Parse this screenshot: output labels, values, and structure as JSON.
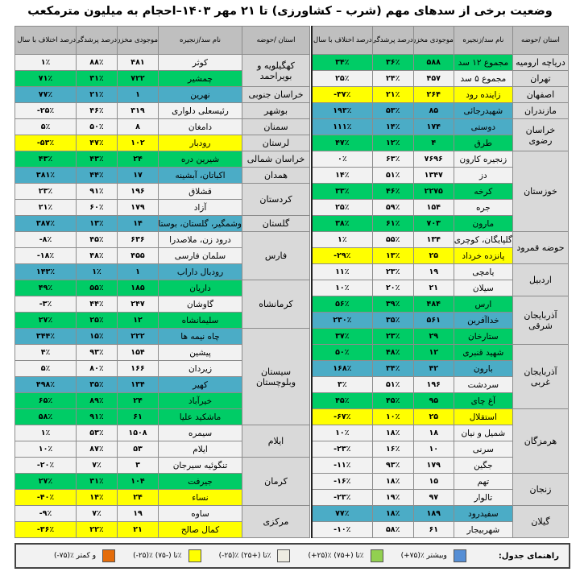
{
  "title": "وضعیت برخی از سدهای مهم (شرب – کشاورزی) تا ۲۱ مهر ۱۴۰۳–احجام به میلیون مترمکعب",
  "headers": {
    "province": "استان /حوضه",
    "name": "نام سد/زنجیره",
    "storage": "موجودی مخزن",
    "fill": "درصد پرشدگی",
    "diff": "درصد اختلاف با سال قبل"
  },
  "colors": {
    "blue": "#4bacc6",
    "green": "#00cc66",
    "light": "#f2f2f2",
    "yellow": "#ffff00",
    "orange": "#e46c0a"
  },
  "right_table": [
    {
      "province": "دریاچه ارومیه",
      "rows": [
        {
          "name": "مجموع ۱۲ سد",
          "storage": "۵۸۸",
          "fill": "۳۶٪",
          "diff": "۳۴٪",
          "status": "green"
        }
      ]
    },
    {
      "province": "تهران",
      "rows": [
        {
          "name": "مجموع ۵ سد",
          "storage": "۴۵۷",
          "fill": "۲۴٪",
          "diff": "۲۵٪",
          "status": "light"
        }
      ]
    },
    {
      "province": "اصفهان",
      "rows": [
        {
          "name": "زاینده رود",
          "storage": "۲۶۴",
          "fill": "۲۱٪",
          "diff": "-۳۷٪",
          "status": "yellow"
        }
      ]
    },
    {
      "province": "مازندران",
      "rows": [
        {
          "name": "شهیدرجائی",
          "storage": "۸۵",
          "fill": "۵۳٪",
          "diff": "۱۹۳٪",
          "status": "blue"
        }
      ]
    },
    {
      "province": "خراسان رضوی",
      "rows": [
        {
          "name": "دوستی",
          "storage": "۱۷۴",
          "fill": "۱۴٪",
          "diff": "۱۱۱٪",
          "status": "blue"
        },
        {
          "name": "طرق",
          "storage": "۴",
          "fill": "۱۲٪",
          "diff": "۴۷٪",
          "status": "green"
        }
      ]
    },
    {
      "province": "خوزستان",
      "rows": [
        {
          "name": "زنجیره کارون",
          "storage": "۷۶۹۶",
          "fill": "۶۳٪",
          "diff": "۰٪",
          "status": "light"
        },
        {
          "name": "دز",
          "storage": "۱۳۴۷",
          "fill": "۵۱٪",
          "diff": "۱۴٪",
          "status": "light"
        },
        {
          "name": "کرخه",
          "storage": "۲۲۷۵",
          "fill": "۴۶٪",
          "diff": "۳۳٪",
          "status": "green"
        },
        {
          "name": "جره",
          "storage": "۱۵۴",
          "fill": "۵۹٪",
          "diff": "۲۵٪",
          "status": "light"
        },
        {
          "name": "مارون",
          "storage": "۷۰۳",
          "fill": "۶۱٪",
          "diff": "۳۸٪",
          "status": "green"
        }
      ]
    },
    {
      "province": "حوضه قمرود",
      "rows": [
        {
          "name": "گلپایگان، کوچری",
          "storage": "۱۳۴",
          "fill": "۵۵٪",
          "diff": "۱٪",
          "status": "light"
        },
        {
          "name": "پانزده خرداد",
          "storage": "۲۵",
          "fill": "۱۳٪",
          "diff": "-۲۹٪",
          "status": "yellow"
        }
      ]
    },
    {
      "province": "اردبیل",
      "rows": [
        {
          "name": "یامچی",
          "storage": "۱۹",
          "fill": "۲۳٪",
          "diff": "۱۱٪",
          "status": "light"
        },
        {
          "name": "سیلان",
          "storage": "۲۱",
          "fill": "۲۰٪",
          "diff": "۱۰٪",
          "status": "light"
        }
      ]
    },
    {
      "province": "آذربایجان شرقی",
      "rows": [
        {
          "name": "ارس",
          "storage": "۴۸۴",
          "fill": "۳۹٪",
          "diff": "۵۶٪",
          "status": "green"
        },
        {
          "name": "خداآفرین",
          "storage": "۵۶۱",
          "fill": "۳۵٪",
          "diff": "۲۳۰٪",
          "status": "blue"
        },
        {
          "name": "ستارخان",
          "storage": "۲۹",
          "fill": "۲۳٪",
          "diff": "۳۷٪",
          "status": "green"
        }
      ]
    },
    {
      "province": "آذربایجان غربی",
      "rows": [
        {
          "name": "شهید قنبری",
          "storage": "۱۲",
          "fill": "۴۸٪",
          "diff": "۵۰٪",
          "status": "green"
        },
        {
          "name": "بارون",
          "storage": "۴۲",
          "fill": "۳۴٪",
          "diff": "۱۶۸٪",
          "status": "blue"
        },
        {
          "name": "سردشت",
          "storage": "۱۹۶",
          "fill": "۵۱٪",
          "diff": "۳٪",
          "status": "light"
        },
        {
          "name": "آغ چای",
          "storage": "۹۵",
          "fill": "۴۵٪",
          "diff": "۴۵٪",
          "status": "green"
        }
      ]
    },
    {
      "province": "هرمزگان",
      "rows": [
        {
          "name": "استقلال",
          "storage": "۲۵",
          "fill": "۱۰٪",
          "diff": "-۶۷٪",
          "status": "yellow"
        },
        {
          "name": "شمیل و نیان",
          "storage": "۱۸",
          "fill": "۱۸٪",
          "diff": "۱۰٪",
          "status": "light"
        },
        {
          "name": "سرنی",
          "storage": "۱۰",
          "fill": "۱۶٪",
          "diff": "-۲۳٪",
          "status": "light"
        },
        {
          "name": "جگین",
          "storage": "۱۷۹",
          "fill": "۹۳٪",
          "diff": "-۱۱٪",
          "status": "light"
        }
      ]
    },
    {
      "province": "زنجان",
      "rows": [
        {
          "name": "تهم",
          "storage": "۱۵",
          "fill": "۱۸٪",
          "diff": "-۱۶٪",
          "status": "light"
        },
        {
          "name": "تالوار",
          "storage": "۹۷",
          "fill": "۱۹٪",
          "diff": "-۲۳٪",
          "status": "light"
        }
      ]
    },
    {
      "province": "گیلان",
      "rows": [
        {
          "name": "سفیدرود",
          "storage": "۱۸۹",
          "fill": "۱۸٪",
          "diff": "۷۷٪",
          "status": "blue"
        },
        {
          "name": "شهربیجار",
          "storage": "۶۱",
          "fill": "۵۸٪",
          "diff": "-۱۰٪",
          "status": "light"
        }
      ]
    }
  ],
  "left_table": [
    {
      "province": "کهگیلویه و بویراحمد",
      "rows": [
        {
          "name": "کوثر",
          "storage": "۴۸۱",
          "fill": "۸۸٪",
          "diff": "۱٪",
          "status": "light"
        },
        {
          "name": "چمشیر",
          "storage": "۷۲۲",
          "fill": "۳۱٪",
          "diff": "۷۱٪",
          "status": "green"
        }
      ]
    },
    {
      "province": "خراسان جنوبی",
      "rows": [
        {
          "name": "نهرین",
          "storage": "۱",
          "fill": "۲۱٪",
          "diff": "۷۷٪",
          "status": "blue"
        }
      ]
    },
    {
      "province": "بوشهر",
      "rows": [
        {
          "name": "رئیسعلی دلواری",
          "storage": "۳۱۹",
          "fill": "۴۶٪",
          "diff": "-۲۵٪",
          "status": "light"
        }
      ]
    },
    {
      "province": "سمنان",
      "rows": [
        {
          "name": "دامغان",
          "storage": "۸",
          "fill": "۵۰٪",
          "diff": "۵٪",
          "status": "light"
        }
      ]
    },
    {
      "province": "لرستان",
      "rows": [
        {
          "name": "رودبار",
          "storage": "۱۰۲",
          "fill": "۴۷٪",
          "diff": "-۵۳٪",
          "status": "yellow"
        }
      ]
    },
    {
      "province": "خراسان شمالی",
      "rows": [
        {
          "name": "شیرین دره",
          "storage": "۲۴",
          "fill": "۴۳٪",
          "diff": "۴۳٪",
          "status": "green"
        }
      ]
    },
    {
      "province": "همدان",
      "rows": [
        {
          "name": "اکباتان، آبشینه",
          "storage": "۱۷",
          "fill": "۴۴٪",
          "diff": "۳۸۱٪",
          "status": "blue"
        }
      ]
    },
    {
      "province": "کردستان",
      "rows": [
        {
          "name": "قشلاق",
          "storage": "۱۹۶",
          "fill": "۹۱٪",
          "diff": "۲۳٪",
          "status": "light"
        },
        {
          "name": "آزاد",
          "storage": "۱۷۹",
          "fill": "۶۰٪",
          "diff": "۲۱٪",
          "status": "light"
        }
      ]
    },
    {
      "province": "گلستان",
      "rows": [
        {
          "name": "وشمگیر، گلستان، بوستان",
          "storage": "۱۴",
          "fill": "۱۳٪",
          "diff": "۳۸۷٪",
          "status": "blue"
        }
      ]
    },
    {
      "province": "فارس",
      "rows": [
        {
          "name": "درود زن، ملاصدرا",
          "storage": "۶۳۶",
          "fill": "۴۵٪",
          "diff": "-۸٪",
          "status": "light"
        },
        {
          "name": "سلمان فارسی",
          "storage": "۴۵۵",
          "fill": "۴۸٪",
          "diff": "-۱۸٪",
          "status": "light"
        },
        {
          "name": "رودبال داراب",
          "storage": "۱",
          "fill": "۱٪",
          "diff": "۱۴۳٪",
          "status": "blue"
        }
      ]
    },
    {
      "province": "کرمانشاه",
      "rows": [
        {
          "name": "داریان",
          "storage": "۱۸۵",
          "fill": "۵۵٪",
          "diff": "۴۹٪",
          "status": "green"
        },
        {
          "name": "گاوشان",
          "storage": "۲۴۷",
          "fill": "۴۴٪",
          "diff": "-۳٪",
          "status": "light"
        },
        {
          "name": "سلیمانشاه",
          "storage": "۱۲",
          "fill": "۲۵٪",
          "diff": "۲۷٪",
          "status": "green"
        }
      ]
    },
    {
      "province": "سیستان وبلوچستان",
      "rows": [
        {
          "name": "چاه نیمه ها",
          "storage": "۲۲۲",
          "fill": "۱۵٪",
          "diff": "۳۴۴٪",
          "status": "blue"
        },
        {
          "name": "پیشین",
          "storage": "۱۵۴",
          "fill": "۹۳٪",
          "diff": "۴٪",
          "status": "light"
        },
        {
          "name": "زیردان",
          "storage": "۱۶۶",
          "fill": "۸۰٪",
          "diff": "۵٪",
          "status": "light"
        },
        {
          "name": "کهیر",
          "storage": "۱۳۴",
          "fill": "۳۵٪",
          "diff": "۴۹۸٪",
          "status": "blue"
        },
        {
          "name": "خیرآباد",
          "storage": "۲۴",
          "fill": "۸۹٪",
          "diff": "۶۵٪",
          "status": "green"
        },
        {
          "name": "ماشکید علیا",
          "storage": "۶۱",
          "fill": "۹۱٪",
          "diff": "۵۸٪",
          "status": "green"
        }
      ]
    },
    {
      "province": "ایلام",
      "rows": [
        {
          "name": "سیمره",
          "storage": "۱۵۰۸",
          "fill": "۵۳٪",
          "diff": "۱٪",
          "status": "light"
        },
        {
          "name": "ایلام",
          "storage": "۵۳",
          "fill": "۸۷٪",
          "diff": "۱۰٪",
          "status": "light"
        }
      ]
    },
    {
      "province": "کرمان",
      "rows": [
        {
          "name": "تنگوئیه سیرجان",
          "storage": "۳",
          "fill": "۷٪",
          "diff": "-۲۰٪",
          "status": "light"
        },
        {
          "name": "جیرفت",
          "storage": "۱۰۴",
          "fill": "۳۱٪",
          "diff": "۲۷٪",
          "status": "green"
        },
        {
          "name": "نساء",
          "storage": "۲۴",
          "fill": "۱۴٪",
          "diff": "-۴۰٪",
          "status": "yellow"
        }
      ]
    },
    {
      "province": "مرکزی",
      "rows": [
        {
          "name": "ساوه",
          "storage": "۱۹",
          "fill": "۷٪",
          "diff": "-۹٪",
          "status": "light"
        },
        {
          "name": "کمال صالح",
          "storage": "۲۱",
          "fill": "۲۲٪",
          "diff": "-۳۶٪",
          "status": "yellow"
        }
      ]
    }
  ],
  "legend": {
    "title": "راهنمای جدول:",
    "items": [
      {
        "label": "(+۷۵)٪ وبیشتر",
        "color": "#558ed5"
      },
      {
        "label": "(+۲۵)٪ تا (+۷۵)٪",
        "color": "#92d050"
      },
      {
        "label": "(-۲۵)٪ تا (+۲۵)٪",
        "color": "#eeece1"
      },
      {
        "label": "(-۲۵)٪ تا (-۷۵)٪",
        "color": "#ffff00"
      },
      {
        "label": "(-۷۵)٪ و کمتر",
        "color": "#e46c0a"
      }
    ]
  }
}
